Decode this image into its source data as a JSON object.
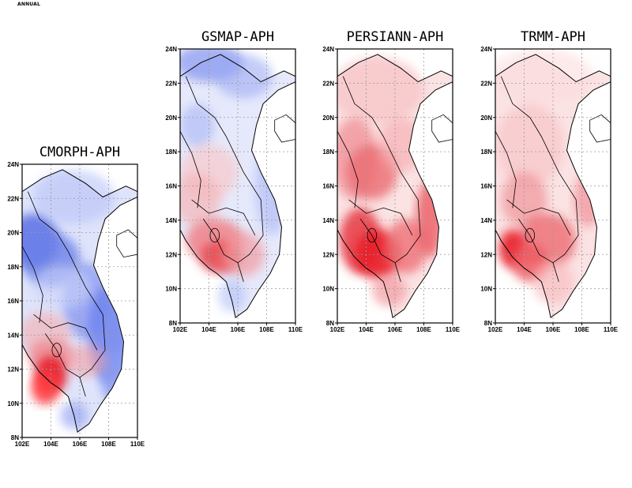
{
  "figure": {
    "label": "ANNUAL"
  },
  "axes": {
    "lat_ticks": [
      "24N",
      "22N",
      "20N",
      "18N",
      "16N",
      "14N",
      "12N",
      "10N",
      "8N"
    ],
    "lon_ticks": [
      "102E",
      "104E",
      "106E",
      "108E",
      "110E"
    ]
  },
  "panels": [
    {
      "id": "cmorph",
      "title": "CMORPH-APH"
    },
    {
      "id": "gsmap",
      "title": "GSMAP-APH"
    },
    {
      "id": "persiann",
      "title": "PERSIANN-APH"
    },
    {
      "id": "trmm",
      "title": "TRMM-APH"
    }
  ],
  "colors": {
    "positive": "#e8202a",
    "negative": "#4a5fe0",
    "grid": "#9a9a9a",
    "coast": "#000000"
  }
}
